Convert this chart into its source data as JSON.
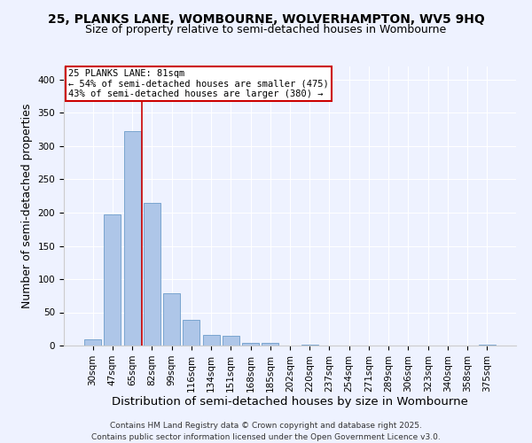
{
  "title_line1": "25, PLANKS LANE, WOMBOURNE, WOLVERHAMPTON, WV5 9HQ",
  "title_line2": "Size of property relative to semi-detached houses in Wombourne",
  "xlabel": "Distribution of semi-detached houses by size in Wombourne",
  "ylabel": "Number of semi-detached properties",
  "categories": [
    "30sqm",
    "47sqm",
    "65sqm",
    "82sqm",
    "99sqm",
    "116sqm",
    "134sqm",
    "151sqm",
    "168sqm",
    "185sqm",
    "202sqm",
    "220sqm",
    "237sqm",
    "254sqm",
    "271sqm",
    "289sqm",
    "306sqm",
    "323sqm",
    "340sqm",
    "358sqm",
    "375sqm"
  ],
  "values": [
    10,
    197,
    322,
    214,
    79,
    39,
    16,
    15,
    4,
    4,
    0,
    2,
    0,
    0,
    0,
    0,
    0,
    0,
    0,
    0,
    2
  ],
  "bar_color": "#aec6e8",
  "bar_edge_color": "#5a8fc2",
  "annotation_box_text": "25 PLANKS LANE: 81sqm\n← 54% of semi-detached houses are smaller (475)\n43% of semi-detached houses are larger (380) →",
  "annotation_line_color": "#cc0000",
  "annotation_box_edge_color": "#cc0000",
  "red_line_x": 2.5,
  "ylim": [
    0,
    420
  ],
  "yticks": [
    0,
    50,
    100,
    150,
    200,
    250,
    300,
    350,
    400
  ],
  "background_color": "#eef2ff",
  "footer_line1": "Contains HM Land Registry data © Crown copyright and database right 2025.",
  "footer_line2": "Contains public sector information licensed under the Open Government Licence v3.0.",
  "title_fontsize": 10,
  "subtitle_fontsize": 9,
  "axis_label_fontsize": 9,
  "tick_fontsize": 7.5,
  "annotation_fontsize": 7.5,
  "footer_fontsize": 6.5
}
